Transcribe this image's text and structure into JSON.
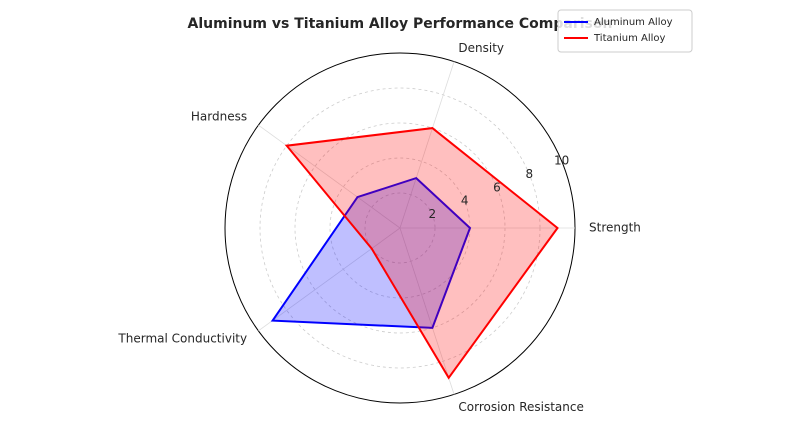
{
  "chart_data": {
    "type": "radar",
    "title": "Aluminum vs Titanium Alloy Performance Comparison",
    "categories": [
      "Strength",
      "Density",
      "Hardness",
      "Thermal Conductivity",
      "Corrosion Resistance"
    ],
    "series": [
      {
        "name": "Aluminum Alloy",
        "color": "#0000ff",
        "values": [
          4,
          3,
          3,
          9,
          6
        ]
      },
      {
        "name": "Titanium Alloy",
        "color": "#ff0000",
        "values": [
          9,
          6,
          8,
          2,
          9
        ]
      }
    ],
    "ylim": [
      0,
      10
    ],
    "yticks": [
      2,
      4,
      6,
      8,
      10
    ],
    "grid": true,
    "legend": "upper right"
  }
}
